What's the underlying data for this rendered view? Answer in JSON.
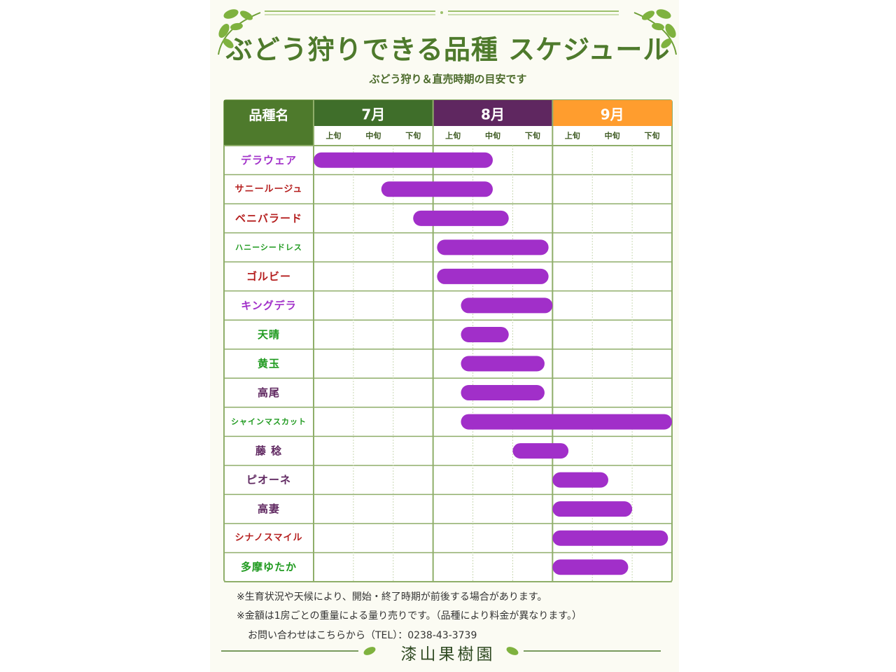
{
  "header": {
    "title": "ぶどう狩りできる品種 スケジュール",
    "subtitle": "ぶどう狩り＆直売時期の目安です"
  },
  "chart_data": {
    "type": "bar",
    "orientation": "horizontal-gantt",
    "variety_header": "品種名",
    "months": [
      {
        "label": "7月",
        "color": "#3f6e2a"
      },
      {
        "label": "8月",
        "color": "#5f2760"
      },
      {
        "label": "9月",
        "color": "#ff9d2e"
      }
    ],
    "periods": [
      "上旬",
      "中旬",
      "下旬",
      "上旬",
      "中旬",
      "下旬",
      "上旬",
      "中旬",
      "下旬"
    ],
    "bar_color": "#a12fc9",
    "x_unit": "旬 (0 = 7月上旬開始, 9 = 9月下旬終了)",
    "xlim": [
      0,
      9
    ],
    "varieties": [
      {
        "name": "デラウェア",
        "color": "#a12fc9",
        "start": 0.0,
        "end": 4.5
      },
      {
        "name": "サニールージュ",
        "color": "#b51e1e",
        "start": 1.7,
        "end": 4.5
      },
      {
        "name": "ベニバラード",
        "color": "#b51e1e",
        "start": 2.5,
        "end": 4.9
      },
      {
        "name": "ハニーシードレス",
        "color": "#1f9a1f",
        "start": 3.1,
        "end": 5.9
      },
      {
        "name": "ゴルビー",
        "color": "#b51e1e",
        "start": 3.1,
        "end": 5.9
      },
      {
        "name": "キングデラ",
        "color": "#a12fc9",
        "start": 3.7,
        "end": 6.0
      },
      {
        "name": "天晴",
        "color": "#1f9a1f",
        "start": 3.7,
        "end": 4.9
      },
      {
        "name": "黄玉",
        "color": "#1f9a1f",
        "start": 3.7,
        "end": 5.8
      },
      {
        "name": "高尾",
        "color": "#5f2760",
        "start": 3.7,
        "end": 5.8
      },
      {
        "name": "シャインマスカット",
        "color": "#1f9a1f",
        "start": 3.7,
        "end": 9.0
      },
      {
        "name": "藤 稔",
        "color": "#5f2760",
        "start": 5.0,
        "end": 6.4
      },
      {
        "name": "ピオーネ",
        "color": "#5f2760",
        "start": 6.0,
        "end": 7.4
      },
      {
        "name": "高妻",
        "color": "#5f2760",
        "start": 6.0,
        "end": 8.0
      },
      {
        "name": "シナノスマイル",
        "color": "#b51e1e",
        "start": 6.0,
        "end": 8.9
      },
      {
        "name": "多摩ゆたか",
        "color": "#1f9a1f",
        "start": 6.0,
        "end": 7.9
      }
    ]
  },
  "notes": {
    "note1": "※生育状況や天候により、開始・終了時期が前後する場合があります。",
    "note2": "※金額は1房ごとの重量による量り売りです。（品種により料金が異なります。）",
    "contact": "お問い合わせはこちらから（TEL）：0238-43-3739"
  },
  "footer": {
    "farm_name": "漆山果樹園"
  },
  "colors": {
    "accent_green": "#4e7a2c",
    "grid_line": "#8fae6a",
    "leaf": "#7fb23f"
  },
  "icons": [
    "leaf-sprig-icon"
  ]
}
